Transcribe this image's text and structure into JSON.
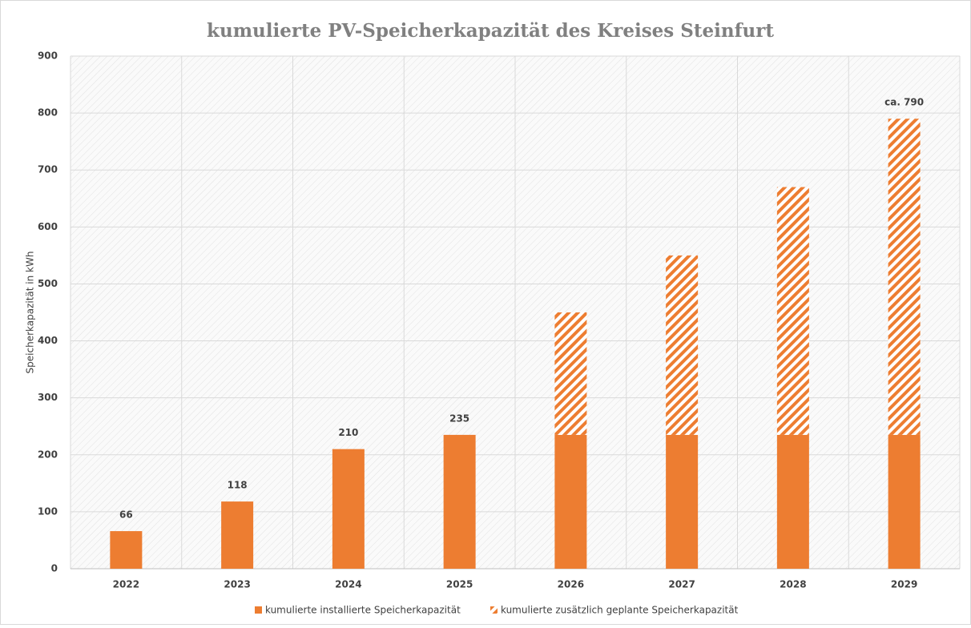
{
  "chart_data": {
    "type": "stacked_bar",
    "title": "kumulierte PV-Speicherkapazität des Kreises Steinfurt",
    "y_label": "Speicherkapazität in kWh",
    "categories": [
      "2022",
      "2023",
      "2024",
      "2025",
      "2026",
      "2027",
      "2028",
      "2029"
    ],
    "series": [
      {
        "name": "kumulierte installierte Speicherkapazität",
        "color": "#ed7d31",
        "pattern": "solid",
        "values": [
          66,
          118,
          210,
          235,
          235,
          235,
          235,
          235
        ],
        "value_labels": [
          "66",
          "118",
          "210",
          "235",
          null,
          null,
          null,
          null
        ]
      },
      {
        "name": "kumulierte zusätzlich geplante Speicherkapazität",
        "color": "#ed7d31",
        "pattern": "hatched",
        "values": [
          null,
          null,
          null,
          null,
          215,
          315,
          435,
          555
        ]
      }
    ],
    "annotations": [
      {
        "x": "2029",
        "y": 790,
        "text": "ca. 790"
      }
    ],
    "ylim": [
      0,
      900
    ],
    "yticks": [
      0,
      100,
      200,
      300,
      400,
      500,
      600,
      700,
      800,
      900
    ],
    "grid": true,
    "legend": "bottom"
  }
}
